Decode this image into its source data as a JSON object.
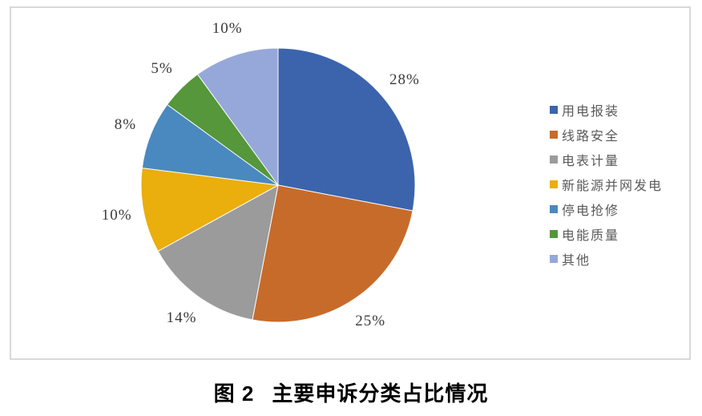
{
  "chart_data": {
    "type": "pie",
    "title": "图 2　主要申诉分类占比情况",
    "categories": [
      "用电报装",
      "线路安全",
      "电表计量",
      "新能源并网发电",
      "停电抢修",
      "电能质量",
      "其他"
    ],
    "values": [
      28,
      25,
      14,
      10,
      8,
      5,
      10
    ],
    "labels": [
      "28%",
      "25%",
      "14%",
      "10%",
      "8%",
      "5%",
      "10%"
    ],
    "colors": [
      "#3B64AD",
      "#C76B2B",
      "#9B9B9B",
      "#EAAE0D",
      "#4A89BF",
      "#55973A",
      "#96A8D9"
    ],
    "legend_position": "right",
    "start_angle_deg": 0,
    "direction": "clockwise",
    "frame_border_color": "#d9d9d9",
    "label_color": "#3a3a3a",
    "legend_text_color": "#5a5a5a"
  },
  "caption": {
    "prefix": "图 2",
    "text": "主要申诉分类占比情况"
  }
}
